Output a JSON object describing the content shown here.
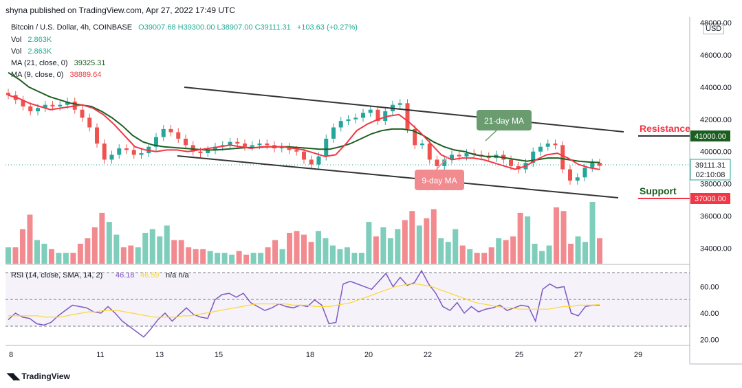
{
  "header": {
    "published": "shyna published on TradingView.com, Apr 27, 2022 17:49 UTC"
  },
  "legend": {
    "symbol": "Bitcoin / U.S. Dollar, 4h, COINBASE",
    "ohlc": "O39007.68  H39300.00  L38907.00  C39111.31",
    "change": "+103.63 (+0.27%)",
    "vol1_label": "Vol",
    "vol1_value": "2.863K",
    "vol2_label": "Vol",
    "vol2_value": "2.863K",
    "ma21_label": "MA (21, close, 0)",
    "ma21_value": "39325.31",
    "ma9_label": "MA (9, close, 0)",
    "ma9_value": "38889.64"
  },
  "currency": "USD",
  "price_axis": [
    "48000.00",
    "46000.00",
    "44000.00",
    "42000.00",
    "40000.00",
    "38000.00",
    "36000.00",
    "34000.00"
  ],
  "rsi_axis": [
    "60.00",
    "40.00",
    "20.00"
  ],
  "time_axis": [
    "8",
    "11",
    "13",
    "15",
    "18",
    "20",
    "22",
    "25",
    "27",
    "29"
  ],
  "rsi_legend": {
    "label": "RSI (14, close, SMA, 14, 2)",
    "value": "46.18",
    "sma": "46.59",
    "na": "n/a  n/a"
  },
  "annotations": {
    "ma21": "21-day MA",
    "ma9": "9-day MA",
    "resistance": "Resistance",
    "support": "Support"
  },
  "price_tags": {
    "resistance": "41000.00",
    "current": "39111.31",
    "countdown": "02:10:08",
    "support": "37000.00"
  },
  "footer": "TradingView",
  "colors": {
    "up": "#26a69a",
    "down": "#ef5350",
    "ma21": "#1b5e20",
    "ma9": "#f23645",
    "rsi": "#7e57c2",
    "rsi_sma": "#fdd835"
  },
  "chart_data": {
    "type": "candlestick",
    "title": "Bitcoin / U.S. Dollar, 4h, COINBASE",
    "ylim": [
      33000,
      48000
    ],
    "x_ticks": [
      "8",
      "11",
      "13",
      "15",
      "18",
      "20",
      "22",
      "25",
      "27",
      "29"
    ],
    "series": [
      {
        "name": "Close (approx.)",
        "values": [
          43500,
          43200,
          42800,
          42500,
          42700,
          42900,
          42800,
          42900,
          43100,
          42600,
          42100,
          41500,
          40500,
          39500,
          39800,
          40200,
          40100,
          39800,
          39900,
          40300,
          40900,
          41400,
          41200,
          40800,
          40400,
          40000,
          39900,
          40100,
          40300,
          40400,
          40600,
          40500,
          40300,
          40400,
          40500,
          40400,
          40200,
          40300,
          40100,
          40000,
          39500,
          39200,
          39700,
          40800,
          41500,
          41900,
          42000,
          42100,
          42400,
          42600,
          41900,
          42500,
          42900,
          43000,
          41400,
          40400,
          40500,
          39500,
          39100,
          39500,
          39800,
          39700,
          39900,
          39800,
          39700,
          39600,
          39800,
          39500,
          39100,
          38900,
          39300,
          40000,
          40300,
          40500,
          40400,
          38900,
          38200,
          38400,
          39000,
          39300,
          39111.31
        ]
      },
      {
        "name": "MA (21, close, 0)",
        "values": [
          44900,
          44500,
          44000,
          43700,
          43400,
          43200,
          43000,
          42900,
          42800,
          42500,
          42100,
          41600,
          41000,
          40600,
          40400,
          40300,
          40250,
          40200,
          40150,
          40100,
          40100,
          40150,
          40200,
          40250,
          40250,
          40300,
          40300,
          40300,
          40250,
          40200,
          40150,
          40150,
          40300,
          40500,
          40800,
          41100,
          41300,
          41400,
          41400,
          41300,
          41000,
          40600,
          40300,
          40100,
          40000,
          39800,
          39700,
          39700,
          39600,
          39500,
          39400,
          39500,
          39600,
          39600,
          39500,
          39400,
          39350,
          39325.31
        ]
      },
      {
        "name": "MA (9, close, 0)",
        "values": [
          43500,
          43300,
          43000,
          42800,
          42600,
          42700,
          42800,
          42900,
          42700,
          42300,
          41700,
          41000,
          40300,
          40100,
          40000,
          40100,
          40100,
          40000,
          40100,
          40200,
          40300,
          40400,
          40300,
          40200,
          40300,
          40300,
          40300,
          40200,
          40100,
          39900,
          39700,
          39800,
          40500,
          41300,
          41700,
          42000,
          42200,
          42300,
          41800,
          41200,
          40500,
          39800,
          39500,
          39600,
          39600,
          39500,
          39300,
          39100,
          38900,
          39100,
          39500,
          39800,
          39900,
          39600,
          39200,
          39000,
          38889.64
        ]
      },
      {
        "name": "Vol",
        "values": [
          0.9,
          0.9,
          1.9,
          2.7,
          1.3,
          1.1,
          0.8,
          0.6,
          0.6,
          0.6,
          1.1,
          1.4,
          2.0,
          2.8,
          2.3,
          1.6,
          0.9,
          1.0,
          0.9,
          1.7,
          1.9,
          1.5,
          2.1,
          1.3,
          1.3,
          0.9,
          0.8,
          0.8,
          0.7,
          0.6,
          0.6,
          0.5,
          0.7,
          0.5,
          0.6,
          0.6,
          0.9,
          1.3,
          0.8,
          1.7,
          1.8,
          1.6,
          1.2,
          1.8,
          1.4,
          1.0,
          0.8,
          0.9,
          0.6,
          0.6,
          2.3,
          1.5,
          2.0,
          1.4,
          1.9,
          2.4,
          2.9,
          2.1,
          2.5,
          3.0,
          1.4,
          1.2,
          1.9,
          1.0,
          0.8,
          0.6,
          0.6,
          0.9,
          1.4,
          1.3,
          1.5,
          2.8,
          2.6,
          1.1,
          0.7,
          1.0,
          3.1,
          2.9,
          1.1,
          1.5,
          1.2,
          3.4,
          1.4
        ]
      },
      {
        "name": "RSI",
        "values": [
          35,
          40,
          37,
          36,
          32,
          31,
          33,
          38,
          42,
          46,
          45,
          44,
          41,
          40,
          45,
          40,
          34,
          30,
          26,
          22,
          28,
          35,
          40,
          34,
          39,
          44,
          39,
          37,
          36,
          50,
          54,
          55,
          52,
          55,
          48,
          45,
          42,
          44,
          47,
          45,
          44,
          46,
          45,
          50,
          46,
          32,
          33,
          62,
          64,
          62,
          60,
          58,
          64,
          70,
          60,
          67,
          61,
          63,
          72,
          62,
          55,
          45,
          42,
          48,
          40,
          45,
          41,
          43,
          44,
          46,
          42,
          44,
          46,
          45,
          34,
          58,
          62,
          59,
          60,
          40,
          38,
          45,
          46,
          46.18
        ]
      },
      {
        "name": "RSI SMA",
        "values": [
          38,
          38,
          38,
          38,
          38,
          37,
          37,
          37,
          38,
          39,
          40,
          41,
          41,
          42,
          42,
          42,
          41,
          40,
          39,
          38,
          37,
          37,
          37,
          37,
          38,
          38,
          39,
          40,
          41,
          42,
          43,
          44,
          45,
          46,
          47,
          47,
          47,
          47,
          47,
          46,
          46,
          46,
          45,
          45,
          45,
          46,
          47,
          48,
          50,
          52,
          54,
          56,
          58,
          60,
          61,
          62,
          62,
          61,
          60,
          58,
          56,
          54,
          52,
          50,
          48,
          47,
          46,
          45,
          44,
          44,
          43,
          43,
          43,
          43,
          43,
          44,
          45,
          45,
          46,
          46,
          46,
          46.59
        ]
      }
    ],
    "annotations": [
      "21-day MA",
      "9-day MA",
      "Resistance",
      "Support"
    ]
  }
}
